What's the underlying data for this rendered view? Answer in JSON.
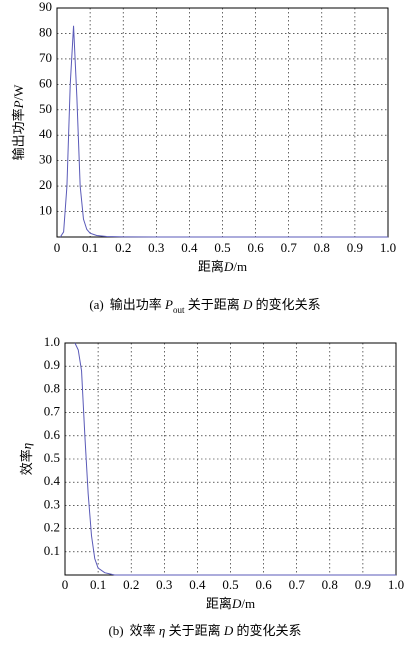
{
  "chart_data": [
    {
      "type": "line",
      "xlabel": [
        "距离",
        "D",
        "/m"
      ],
      "ylabel": [
        "输出功率",
        "P",
        "/W"
      ],
      "caption": [
        "(a)",
        "输出功率 ",
        "P",
        "out",
        " 关于距离 ",
        "D",
        " 的变化关系"
      ],
      "x": [
        0.01,
        0.02,
        0.03,
        0.04,
        0.05,
        0.06,
        0.07,
        0.08,
        0.09,
        0.1,
        0.12,
        0.15,
        0.2,
        0.3,
        0.5,
        0.7,
        1.0
      ],
      "series": [
        {
          "color": "#5a5ab8",
          "values": [
            0,
            2,
            20,
            60,
            83,
            55,
            20,
            7,
            3,
            1.5,
            0.6,
            0.2,
            0.05,
            0,
            0,
            0,
            0
          ]
        }
      ],
      "xlim": [
        0,
        1
      ],
      "ylim": [
        0,
        90
      ],
      "xticks": [
        0,
        0.1,
        0.2,
        0.3,
        0.4,
        0.5,
        0.6,
        0.7,
        0.8,
        0.9,
        {
          "value": 1,
          "label": "1.0"
        }
      ],
      "yticks": [
        10,
        20,
        30,
        40,
        50,
        60,
        70,
        80,
        90
      ],
      "grid": true
    },
    {
      "type": "line",
      "xlabel": [
        "距离",
        "D",
        "/m"
      ],
      "ylabel": [
        "效率",
        "η"
      ],
      "caption": [
        "(b)",
        "效率 ",
        "η",
        " 关于距离 ",
        "D",
        " 的变化关系"
      ],
      "x": [
        0.03,
        0.04,
        0.05,
        0.06,
        0.07,
        0.08,
        0.09,
        0.1,
        0.12,
        0.15,
        0.3,
        0.5,
        0.7,
        1.0
      ],
      "series": [
        {
          "color": "#5a5ab8",
          "values": [
            1.0,
            0.97,
            0.88,
            0.6,
            0.35,
            0.17,
            0.07,
            0.03,
            0.01,
            0,
            0,
            0,
            0,
            0
          ]
        }
      ],
      "xlim": [
        0,
        1
      ],
      "ylim": [
        0,
        1
      ],
      "xticks": [
        0,
        0.1,
        0.2,
        0.3,
        0.4,
        0.5,
        0.6,
        0.7,
        0.8,
        0.9,
        {
          "value": 1,
          "label": "1.0"
        }
      ],
      "yticks": [
        0.1,
        0.2,
        0.3,
        0.4,
        0.5,
        0.6,
        0.7,
        0.8,
        0.9,
        {
          "value": 1,
          "label": "1.0"
        }
      ],
      "grid": true
    }
  ]
}
